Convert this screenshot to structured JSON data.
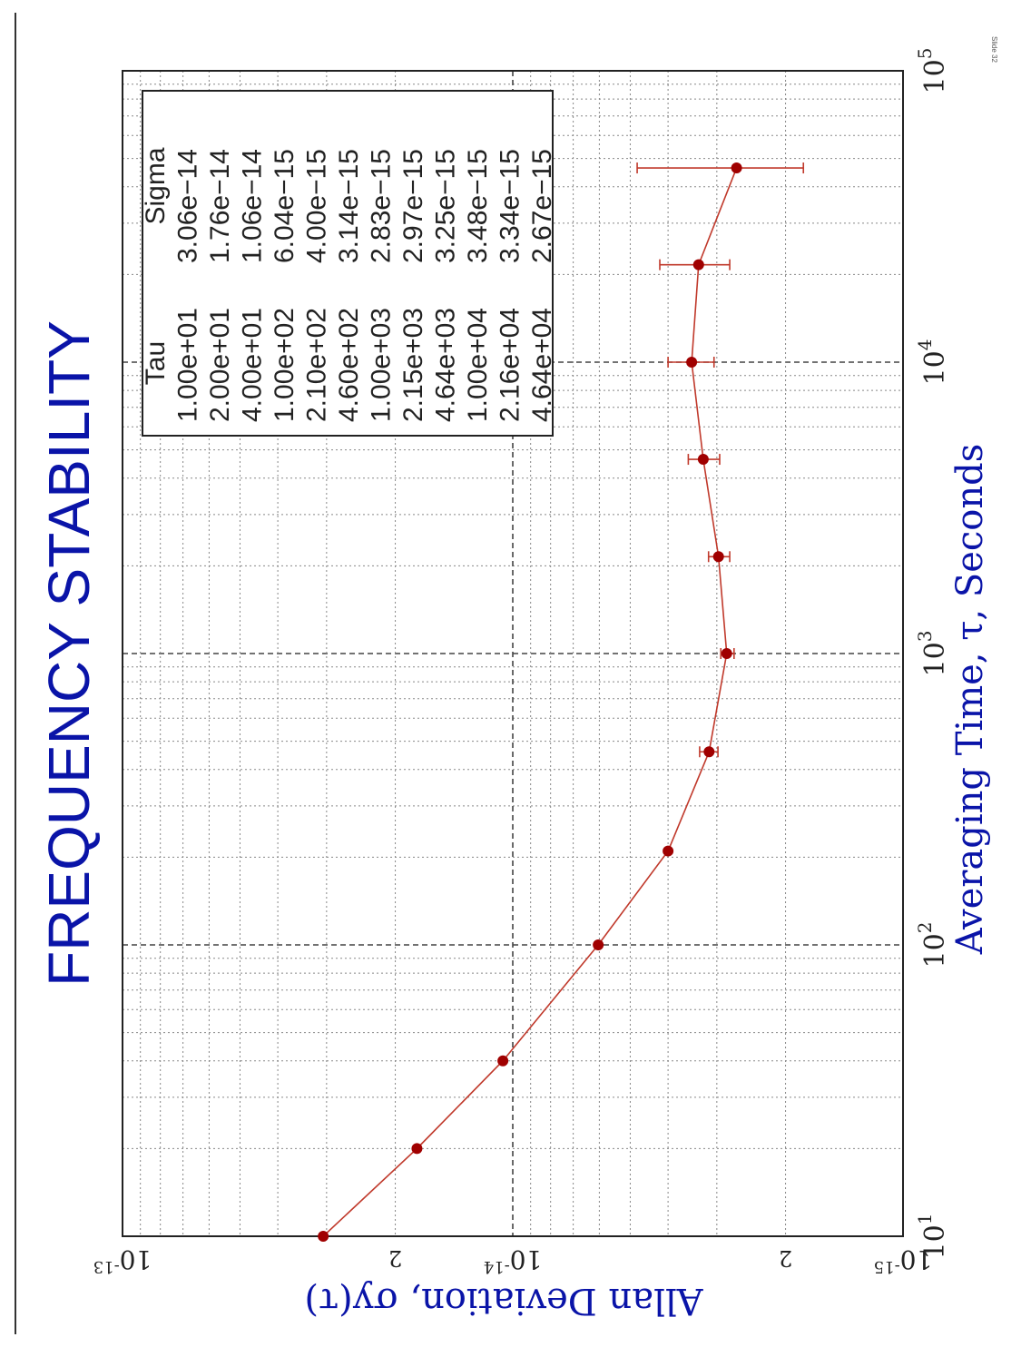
{
  "slide_label": "Slide 32",
  "colors": {
    "title": "#0a14a8",
    "axis_label": "#0a14a8",
    "series": "#c0392b",
    "marker": "#a00000",
    "grid": "#888888",
    "text": "#222222"
  },
  "chart_data": {
    "type": "line",
    "title": "FREQUENCY STABILITY",
    "xlabel": "Averaging Time, τ, Seconds",
    "ylabel": "Allan Deviation, σy(τ)",
    "xscale": "log",
    "yscale": "log",
    "xlim": [
      10,
      100000
    ],
    "ylim": [
      1e-15,
      1e-13
    ],
    "grid": true,
    "orientation": "rotated 90° clockwise on the page",
    "x_tick_labels": [
      {
        "base": "10",
        "exp": "1"
      },
      {
        "base": "10",
        "exp": "2"
      },
      {
        "base": "10",
        "exp": "3"
      },
      {
        "base": "10",
        "exp": "4"
      },
      {
        "base": "10",
        "exp": "5"
      }
    ],
    "y_tick_labels": [
      {
        "value": 1e-15,
        "base": "10",
        "exp": "-15"
      },
      {
        "value": 2e-15,
        "base": "2",
        "exp": ""
      },
      {
        "value": 1e-14,
        "base": "10",
        "exp": "-14"
      },
      {
        "value": 2e-14,
        "base": "2",
        "exp": ""
      },
      {
        "value": 1e-13,
        "base": "10",
        "exp": "-13"
      }
    ],
    "table": {
      "headers": [
        "Tau",
        "Sigma"
      ],
      "rows": [
        [
          "1.00e+01",
          "3.06e−14"
        ],
        [
          "2.00e+01",
          "1.76e−14"
        ],
        [
          "4.00e+01",
          "1.06e−14"
        ],
        [
          "1.00e+02",
          "6.04e−15"
        ],
        [
          "2.10e+02",
          "4.00e−15"
        ],
        [
          "4.60e+02",
          "3.14e−15"
        ],
        [
          "1.00e+03",
          "2.83e−15"
        ],
        [
          "2.15e+03",
          "2.97e−15"
        ],
        [
          "4.64e+03",
          "3.25e−15"
        ],
        [
          "1.00e+04",
          "3.48e−15"
        ],
        [
          "2.16e+04",
          "3.34e−15"
        ],
        [
          "4.64e+04",
          "2.67e−15"
        ]
      ]
    },
    "series": [
      {
        "x": [
          10,
          20,
          40,
          100,
          210,
          460,
          1000,
          2150,
          4640,
          10000,
          21600,
          46400
        ],
        "y": [
          3.06e-14,
          1.76e-14,
          1.06e-14,
          6.04e-15,
          4e-15,
          3.14e-15,
          2.83e-15,
          2.97e-15,
          3.25e-15,
          3.48e-15,
          3.34e-15,
          2.67e-15
        ],
        "error_low": [
          null,
          null,
          null,
          null,
          null,
          3.32e-15,
          2.93e-15,
          3.15e-15,
          3.55e-15,
          4e-15,
          4.2e-15,
          4.8e-15
        ],
        "error_high": [
          null,
          null,
          null,
          null,
          null,
          2.98e-15,
          2.71e-15,
          2.78e-15,
          2.95e-15,
          3.05e-15,
          2.78e-15,
          1.8e-15
        ]
      }
    ]
  }
}
